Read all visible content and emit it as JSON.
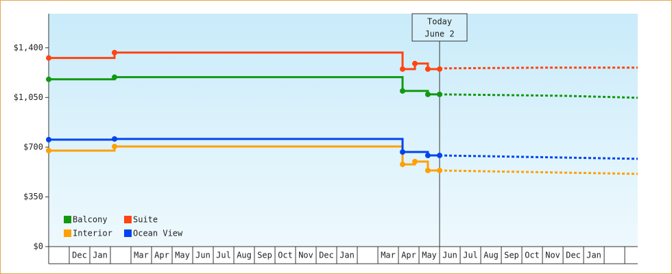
{
  "chart_data": {
    "type": "step-line",
    "categories": [
      null,
      "Dec",
      "Jan",
      null,
      "Mar",
      "Apr",
      "May",
      "Jun",
      "Jul",
      "Aug",
      "Sep",
      "Oct",
      "Nov",
      "Dec",
      "Jan",
      null,
      "Mar",
      "Apr",
      "May",
      "Jun",
      "Jul",
      "Aug",
      "Sep",
      "Oct",
      "Nov",
      "Dec",
      "Jan",
      null,
      null
    ],
    "xlim": [
      0,
      28.63
    ],
    "ylim": [
      0,
      1640
    ],
    "yticks": [
      {
        "value": 0,
        "label": "$0"
      },
      {
        "value": 350,
        "label": "$350"
      },
      {
        "value": 700,
        "label": "$700"
      },
      {
        "value": 1050,
        "label": "$1,050"
      },
      {
        "value": 1400,
        "label": "$1,400"
      }
    ],
    "today": {
      "x": 19,
      "label": "Today",
      "date": "June 2"
    },
    "series": [
      {
        "name": "Balcony",
        "color": "#119911",
        "x": [
          0,
          3.2,
          17.2,
          18.43,
          19
        ],
        "values": [
          1178,
          1193,
          1096,
          1072,
          1072
        ],
        "forecast": {
          "x": [
            19,
            25,
            28.63
          ],
          "values": [
            1072,
            1062,
            1048
          ]
        }
      },
      {
        "name": "Suite",
        "color": "#ff4411",
        "x": [
          0,
          3.2,
          17.2,
          17.8,
          18.43,
          19
        ],
        "values": [
          1328,
          1366,
          1250,
          1289,
          1250,
          1250
        ],
        "forecast": {
          "x": [
            19,
            24,
            28.63
          ],
          "values": [
            1255,
            1260,
            1260
          ]
        }
      },
      {
        "name": "Interior",
        "color": "#ffa000",
        "x": [
          0,
          3.2,
          17.2,
          17.8,
          18.43,
          19
        ],
        "values": [
          676,
          705,
          579,
          599,
          536,
          536
        ],
        "forecast": {
          "x": [
            19,
            28.63
          ],
          "values": [
            536,
            512
          ]
        }
      },
      {
        "name": "Ocean View",
        "color": "#0044ee",
        "x": [
          0,
          3.2,
          17.2,
          18.43,
          19
        ],
        "values": [
          753,
          758,
          666,
          642,
          642
        ],
        "forecast": {
          "x": [
            19,
            28.63
          ],
          "values": [
            642,
            618
          ]
        }
      }
    ]
  }
}
